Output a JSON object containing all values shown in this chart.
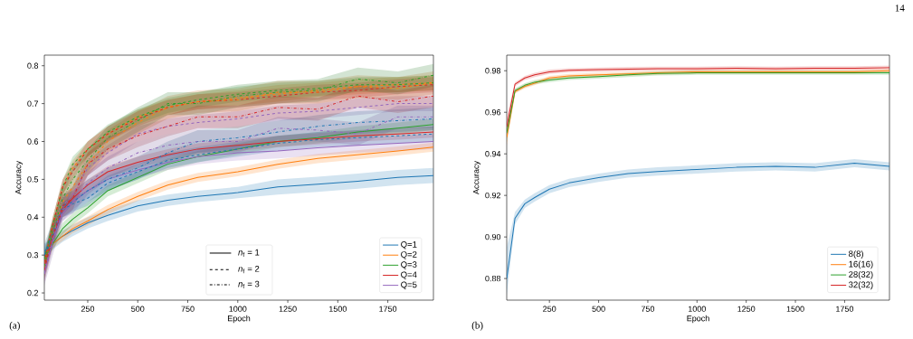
{
  "chart_data": [
    {
      "type": "line",
      "xlabel": "Epoch",
      "ylabel": "Accuracy",
      "xlim": [
        33,
        1978
      ],
      "ylim": [
        0.181,
        0.828
      ],
      "xticks": [
        250,
        500,
        750,
        1000,
        1250,
        1500,
        1750
      ],
      "yticks": [
        0.2,
        0.3,
        0.4,
        0.5,
        0.6,
        0.7,
        0.8
      ],
      "legend": "bottom right",
      "x": [
        33,
        75,
        125,
        175,
        250,
        350,
        500,
        650,
        800,
        1000,
        1200,
        1400,
        1600,
        1800,
        1978
      ],
      "annotations": [
        "*n*$_{f}$ = 1",
        "*n*$_{f}$ = 2",
        "*n*$_{f}$ = 3",
        "(a)"
      ],
      "series": [
        {
          "name": "Q=1",
          "color": "#1f77b4",
          "line_style": "solid",
          "values": [
            0.31,
            0.33,
            0.35,
            0.365,
            0.385,
            0.405,
            0.43,
            0.445,
            0.455,
            0.465,
            0.48,
            0.487,
            0.495,
            0.505,
            0.51
          ],
          "lower": [
            0.29,
            0.315,
            0.335,
            0.35,
            0.37,
            0.39,
            0.415,
            0.43,
            0.44,
            0.45,
            0.46,
            0.467,
            0.475,
            0.485,
            0.49
          ],
          "upper": [
            0.33,
            0.345,
            0.365,
            0.38,
            0.4,
            0.42,
            0.445,
            0.46,
            0.47,
            0.48,
            0.5,
            0.507,
            0.515,
            0.525,
            0.53
          ]
        },
        {
          "name": "Q=2",
          "color": "#ff7f0e",
          "line_style": "solid",
          "values": [
            0.29,
            0.33,
            0.35,
            0.37,
            0.39,
            0.42,
            0.455,
            0.485,
            0.505,
            0.52,
            0.54,
            0.555,
            0.565,
            0.575,
            0.585
          ],
          "lower": [
            0.278,
            0.318,
            0.338,
            0.358,
            0.378,
            0.408,
            0.443,
            0.473,
            0.493,
            0.508,
            0.528,
            0.543,
            0.553,
            0.563,
            0.573
          ],
          "upper": [
            0.302,
            0.342,
            0.362,
            0.382,
            0.402,
            0.432,
            0.467,
            0.497,
            0.517,
            0.532,
            0.552,
            0.567,
            0.577,
            0.587,
            0.597
          ]
        },
        {
          "name": "Q=3",
          "color": "#2ca02c",
          "line_style": "solid",
          "values": [
            0.29,
            0.33,
            0.37,
            0.395,
            0.425,
            0.47,
            0.505,
            0.54,
            0.56,
            0.58,
            0.6,
            0.61,
            0.625,
            0.635,
            0.645
          ],
          "lower": [
            0.275,
            0.315,
            0.355,
            0.38,
            0.41,
            0.455,
            0.49,
            0.525,
            0.545,
            0.565,
            0.585,
            0.595,
            0.61,
            0.62,
            0.63
          ],
          "upper": [
            0.305,
            0.345,
            0.385,
            0.41,
            0.44,
            0.485,
            0.52,
            0.555,
            0.575,
            0.595,
            0.615,
            0.625,
            0.64,
            0.65,
            0.66
          ]
        },
        {
          "name": "Q=4",
          "color": "#d62728",
          "line_style": "solid",
          "values": [
            0.27,
            0.35,
            0.42,
            0.45,
            0.485,
            0.52,
            0.545,
            0.565,
            0.58,
            0.59,
            0.6,
            0.607,
            0.615,
            0.62,
            0.625
          ],
          "lower": [
            0.255,
            0.335,
            0.405,
            0.435,
            0.47,
            0.505,
            0.53,
            0.55,
            0.565,
            0.575,
            0.585,
            0.592,
            0.6,
            0.605,
            0.61
          ],
          "upper": [
            0.285,
            0.365,
            0.435,
            0.465,
            0.5,
            0.535,
            0.56,
            0.58,
            0.595,
            0.605,
            0.615,
            0.622,
            0.63,
            0.635,
            0.64
          ]
        },
        {
          "name": "Q=5",
          "color": "#9467bd",
          "line_style": "solid",
          "values": [
            0.25,
            0.34,
            0.41,
            0.44,
            0.47,
            0.5,
            0.525,
            0.545,
            0.56,
            0.57,
            0.575,
            0.583,
            0.59,
            0.595,
            0.6
          ],
          "lower": [
            0.23,
            0.32,
            0.39,
            0.42,
            0.45,
            0.48,
            0.505,
            0.525,
            0.54,
            0.55,
            0.555,
            0.563,
            0.57,
            0.575,
            0.58
          ],
          "upper": [
            0.27,
            0.36,
            0.43,
            0.46,
            0.49,
            0.52,
            0.545,
            0.565,
            0.58,
            0.59,
            0.595,
            0.603,
            0.61,
            0.615,
            0.62
          ]
        },
        {
          "color": "#1f77b4",
          "line_style": "dashed",
          "values": [
            0.3,
            0.35,
            0.42,
            0.435,
            0.45,
            0.49,
            0.52,
            0.55,
            0.565,
            0.58,
            0.595,
            0.605,
            0.61,
            0.615,
            0.62
          ],
          "lower": [
            0.28,
            0.33,
            0.4,
            0.415,
            0.43,
            0.47,
            0.5,
            0.53,
            0.545,
            0.56,
            0.575,
            0.585,
            0.59,
            0.595,
            0.6
          ],
          "upper": [
            0.32,
            0.37,
            0.44,
            0.455,
            0.47,
            0.51,
            0.54,
            0.57,
            0.585,
            0.6,
            0.615,
            0.625,
            0.63,
            0.635,
            0.64
          ]
        },
        {
          "color": "#ff7f0e",
          "line_style": "dashed",
          "values": [
            0.28,
            0.38,
            0.48,
            0.53,
            0.58,
            0.62,
            0.665,
            0.69,
            0.705,
            0.715,
            0.725,
            0.735,
            0.745,
            0.75,
            0.755
          ],
          "lower": [
            0.26,
            0.36,
            0.46,
            0.51,
            0.56,
            0.6,
            0.645,
            0.67,
            0.685,
            0.695,
            0.705,
            0.718,
            0.725,
            0.73,
            0.735
          ],
          "upper": [
            0.3,
            0.4,
            0.5,
            0.55,
            0.6,
            0.64,
            0.685,
            0.71,
            0.725,
            0.735,
            0.749,
            0.755,
            0.765,
            0.77,
            0.775
          ]
        },
        {
          "color": "#2ca02c",
          "line_style": "dashed",
          "values": [
            0.29,
            0.38,
            0.48,
            0.54,
            0.58,
            0.625,
            0.665,
            0.695,
            0.71,
            0.725,
            0.735,
            0.74,
            0.75,
            0.75,
            0.755
          ],
          "lower": [
            0.27,
            0.36,
            0.46,
            0.52,
            0.56,
            0.605,
            0.645,
            0.675,
            0.69,
            0.705,
            0.715,
            0.72,
            0.73,
            0.73,
            0.735
          ],
          "upper": [
            0.31,
            0.4,
            0.5,
            0.56,
            0.6,
            0.645,
            0.685,
            0.715,
            0.73,
            0.745,
            0.755,
            0.76,
            0.77,
            0.77,
            0.775
          ]
        },
        {
          "color": "#d62728",
          "line_style": "dashed",
          "values": [
            0.28,
            0.38,
            0.48,
            0.52,
            0.58,
            0.62,
            0.66,
            0.69,
            0.705,
            0.71,
            0.72,
            0.73,
            0.735,
            0.745,
            0.75
          ],
          "lower": [
            0.26,
            0.36,
            0.46,
            0.5,
            0.56,
            0.6,
            0.64,
            0.67,
            0.685,
            0.69,
            0.7,
            0.71,
            0.715,
            0.725,
            0.73
          ],
          "upper": [
            0.3,
            0.4,
            0.5,
            0.54,
            0.6,
            0.64,
            0.68,
            0.71,
            0.725,
            0.73,
            0.74,
            0.75,
            0.755,
            0.765,
            0.77
          ]
        },
        {
          "color": "#9467bd",
          "line_style": "dashed",
          "values": [
            0.26,
            0.35,
            0.43,
            0.46,
            0.53,
            0.57,
            0.62,
            0.64,
            0.65,
            0.66,
            0.675,
            0.68,
            0.69,
            0.7,
            0.7
          ],
          "lower": [
            0.24,
            0.33,
            0.41,
            0.44,
            0.51,
            0.55,
            0.6,
            0.62,
            0.63,
            0.64,
            0.655,
            0.66,
            0.67,
            0.68,
            0.68
          ],
          "upper": [
            0.28,
            0.37,
            0.45,
            0.48,
            0.55,
            0.59,
            0.64,
            0.66,
            0.67,
            0.68,
            0.695,
            0.7,
            0.714,
            0.72,
            0.72
          ]
        },
        {
          "color": "#1f77b4",
          "line_style": "dashdot",
          "values": [
            0.3,
            0.36,
            0.43,
            0.44,
            0.47,
            0.5,
            0.53,
            0.57,
            0.6,
            0.61,
            0.625,
            0.64,
            0.65,
            0.655,
            0.66
          ],
          "lower": [
            0.27,
            0.33,
            0.4,
            0.41,
            0.44,
            0.47,
            0.5,
            0.54,
            0.57,
            0.58,
            0.595,
            0.61,
            0.62,
            0.625,
            0.63
          ],
          "upper": [
            0.33,
            0.39,
            0.46,
            0.47,
            0.5,
            0.53,
            0.56,
            0.6,
            0.63,
            0.64,
            0.655,
            0.67,
            0.68,
            0.685,
            0.69
          ]
        },
        {
          "color": "#ff7f0e",
          "line_style": "dashdot",
          "values": [
            0.27,
            0.36,
            0.44,
            0.48,
            0.54,
            0.6,
            0.65,
            0.69,
            0.705,
            0.71,
            0.73,
            0.73,
            0.745,
            0.74,
            0.755
          ],
          "lower": [
            0.24,
            0.33,
            0.41,
            0.45,
            0.51,
            0.57,
            0.62,
            0.66,
            0.675,
            0.68,
            0.7,
            0.7,
            0.715,
            0.71,
            0.725
          ],
          "upper": [
            0.3,
            0.39,
            0.47,
            0.51,
            0.57,
            0.63,
            0.68,
            0.72,
            0.735,
            0.74,
            0.76,
            0.76,
            0.775,
            0.77,
            0.785
          ]
        },
        {
          "color": "#2ca02c",
          "line_style": "dashdot",
          "values": [
            0.27,
            0.36,
            0.45,
            0.5,
            0.55,
            0.61,
            0.655,
            0.7,
            0.7,
            0.72,
            0.73,
            0.735,
            0.765,
            0.755,
            0.775
          ],
          "lower": [
            0.24,
            0.33,
            0.42,
            0.47,
            0.52,
            0.58,
            0.625,
            0.67,
            0.67,
            0.69,
            0.7,
            0.705,
            0.735,
            0.725,
            0.745
          ],
          "upper": [
            0.3,
            0.39,
            0.48,
            0.53,
            0.58,
            0.64,
            0.69,
            0.73,
            0.73,
            0.75,
            0.76,
            0.765,
            0.795,
            0.785,
            0.805
          ]
        },
        {
          "color": "#d62728",
          "line_style": "dashdot",
          "values": [
            0.26,
            0.35,
            0.43,
            0.45,
            0.54,
            0.58,
            0.615,
            0.64,
            0.665,
            0.665,
            0.69,
            0.685,
            0.72,
            0.705,
            0.72
          ],
          "lower": [
            0.23,
            0.32,
            0.4,
            0.42,
            0.51,
            0.55,
            0.585,
            0.614,
            0.635,
            0.635,
            0.66,
            0.655,
            0.69,
            0.675,
            0.69
          ],
          "upper": [
            0.29,
            0.38,
            0.46,
            0.48,
            0.57,
            0.61,
            0.645,
            0.67,
            0.695,
            0.695,
            0.72,
            0.715,
            0.75,
            0.735,
            0.75
          ]
        },
        {
          "color": "#9467bd",
          "line_style": "dashdot",
          "values": [
            0.25,
            0.33,
            0.42,
            0.44,
            0.49,
            0.53,
            0.57,
            0.59,
            0.6,
            0.6,
            0.635,
            0.63,
            0.62,
            0.665,
            0.665
          ],
          "lower": [
            0.22,
            0.3,
            0.39,
            0.41,
            0.46,
            0.5,
            0.54,
            0.56,
            0.57,
            0.57,
            0.605,
            0.6,
            0.59,
            0.635,
            0.635
          ],
          "upper": [
            0.28,
            0.36,
            0.45,
            0.47,
            0.52,
            0.56,
            0.6,
            0.62,
            0.63,
            0.63,
            0.665,
            0.66,
            0.65,
            0.695,
            0.695
          ]
        }
      ]
    },
    {
      "type": "line",
      "xlabel": "Epoch",
      "ylabel": "Accuracy",
      "xlim": [
        33,
        1978
      ],
      "ylim": [
        0.8696,
        0.9875
      ],
      "xticks": [
        250,
        500,
        750,
        1000,
        1250,
        1500,
        1750
      ],
      "yticks": [
        0.88,
        {
          "value": 0.9,
          "label": "0.90"
        },
        0.92,
        0.94,
        0.96,
        0.98
      ],
      "legend": "bottom right",
      "x": [
        33,
        75,
        125,
        175,
        250,
        350,
        500,
        650,
        800,
        1000,
        1200,
        1400,
        1600,
        1800,
        1978
      ],
      "annotations": [
        "(b)",
        "14"
      ],
      "series": [
        {
          "name": "8(8)",
          "color": "#1f77b4",
          "line_style": "solid",
          "values": [
            0.88,
            0.909,
            0.916,
            0.919,
            0.923,
            0.926,
            0.9285,
            0.9305,
            0.9315,
            0.9325,
            0.9335,
            0.934,
            0.9335,
            0.9355,
            0.934
          ],
          "lower": [
            0.872,
            0.906,
            0.914,
            0.917,
            0.921,
            0.924,
            0.9265,
            0.9285,
            0.9295,
            0.9305,
            0.9315,
            0.932,
            0.9315,
            0.9335,
            0.932
          ],
          "upper": [
            0.895,
            0.912,
            0.918,
            0.921,
            0.925,
            0.928,
            0.9305,
            0.9325,
            0.9335,
            0.9345,
            0.9355,
            0.936,
            0.9355,
            0.9375,
            0.936
          ]
        },
        {
          "name": "16(16)",
          "color": "#ff7f0e",
          "line_style": "solid",
          "values": [
            0.948,
            0.97,
            0.9725,
            0.974,
            0.9765,
            0.9775,
            0.978,
            0.9785,
            0.979,
            0.9795,
            0.9795,
            0.9795,
            0.9795,
            0.9795,
            0.98
          ],
          "lower": [
            0.944,
            0.969,
            0.9715,
            0.973,
            0.9755,
            0.9765,
            0.977,
            0.9775,
            0.978,
            0.9785,
            0.9785,
            0.9785,
            0.9785,
            0.9785,
            0.979
          ],
          "upper": [
            0.952,
            0.971,
            0.9735,
            0.975,
            0.9775,
            0.9785,
            0.979,
            0.9795,
            0.98,
            0.9805,
            0.9805,
            0.9805,
            0.9805,
            0.9805,
            0.981
          ]
        },
        {
          "name": "28(32)",
          "color": "#2ca02c",
          "line_style": "solid",
          "values": [
            0.95,
            0.9705,
            0.973,
            0.9745,
            0.9755,
            0.9765,
            0.9772,
            0.978,
            0.9787,
            0.979,
            0.979,
            0.979,
            0.979,
            0.979,
            0.979
          ],
          "lower": [
            0.946,
            0.9695,
            0.972,
            0.9735,
            0.9745,
            0.9755,
            0.9762,
            0.977,
            0.9777,
            0.978,
            0.978,
            0.978,
            0.978,
            0.978,
            0.978
          ],
          "upper": [
            0.954,
            0.9715,
            0.974,
            0.9755,
            0.9765,
            0.9775,
            0.9782,
            0.979,
            0.9797,
            0.98,
            0.98,
            0.98,
            0.98,
            0.98,
            0.98
          ]
        },
        {
          "name": "32(32)",
          "color": "#d62728",
          "line_style": "solid",
          "values": [
            0.953,
            0.9735,
            0.9765,
            0.978,
            0.9795,
            0.9802,
            0.9805,
            0.9808,
            0.981,
            0.981,
            0.9812,
            0.981,
            0.9812,
            0.9812,
            0.9815
          ],
          "lower": [
            0.948,
            0.9725,
            0.9755,
            0.977,
            0.9785,
            0.9792,
            0.9795,
            0.9798,
            0.98,
            0.98,
            0.9802,
            0.98,
            0.9802,
            0.9802,
            0.9805
          ],
          "upper": [
            0.958,
            0.9745,
            0.9775,
            0.979,
            0.9805,
            0.9812,
            0.9815,
            0.9818,
            0.982,
            0.982,
            0.9822,
            0.982,
            0.9822,
            0.9822,
            0.9825
          ]
        }
      ]
    }
  ]
}
